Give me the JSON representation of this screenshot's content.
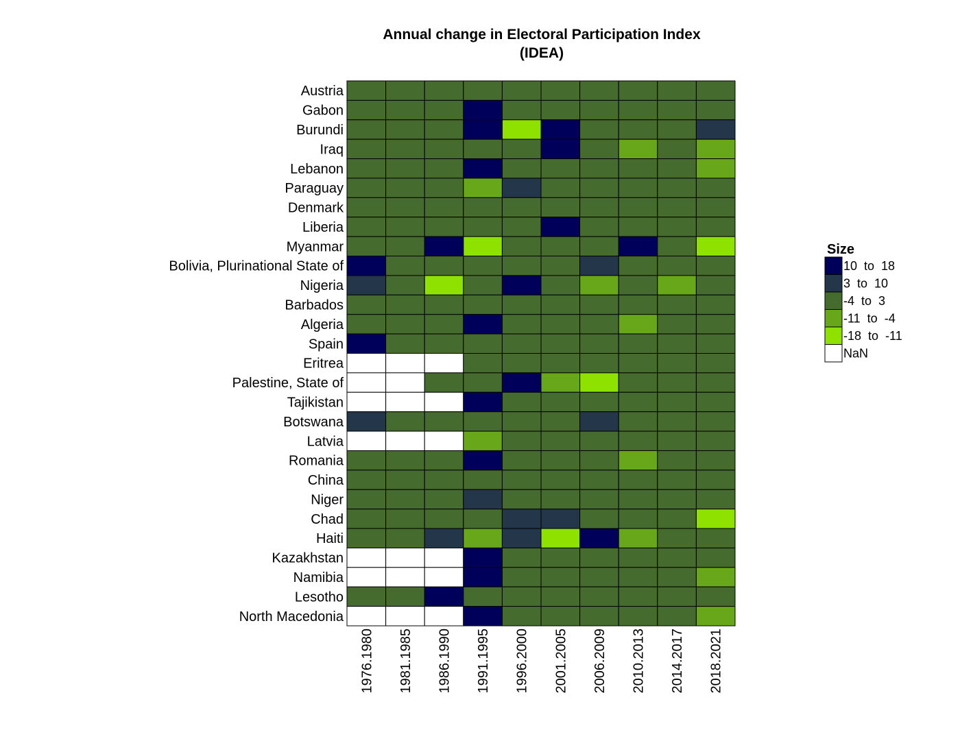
{
  "chart_data": {
    "type": "heatmap",
    "title_lines": [
      "Annual change in Electoral Participation Index",
      "(IDEA)"
    ],
    "columns": [
      "1976.1980",
      "1981.1985",
      "1986.1990",
      "1991.1995",
      "1996.2000",
      "2001.2005",
      "2006.2009",
      "2010.2013",
      "2014.2017",
      "2018.2021"
    ],
    "rows": [
      "Austria",
      "Gabon",
      "Burundi",
      "Iraq",
      "Lebanon",
      "Paraguay",
      "Denmark",
      "Liberia",
      "Myanmar",
      "Bolivia, Plurinational State of",
      "Nigeria",
      "Barbados",
      "Algeria",
      "Spain",
      "Eritrea",
      "Palestine, State of",
      "Tajikistan",
      "Botswana",
      "Latvia",
      "Romania",
      "China",
      "Niger",
      "Chad",
      "Haiti",
      "Kazakhstan",
      "Namibia",
      "Lesotho",
      "North Macedonia"
    ],
    "cells": [
      [
        2,
        2,
        2,
        2,
        2,
        2,
        2,
        2,
        2,
        2
      ],
      [
        2,
        2,
        2,
        0,
        2,
        2,
        2,
        2,
        2,
        2
      ],
      [
        2,
        2,
        2,
        0,
        4,
        0,
        2,
        2,
        2,
        1
      ],
      [
        2,
        2,
        2,
        2,
        2,
        0,
        2,
        3,
        2,
        3
      ],
      [
        2,
        2,
        2,
        0,
        2,
        2,
        2,
        2,
        2,
        3
      ],
      [
        2,
        2,
        2,
        3,
        1,
        2,
        2,
        2,
        2,
        2
      ],
      [
        2,
        2,
        2,
        2,
        2,
        2,
        2,
        2,
        2,
        2
      ],
      [
        2,
        2,
        2,
        2,
        2,
        0,
        2,
        2,
        2,
        2
      ],
      [
        2,
        2,
        0,
        4,
        2,
        2,
        2,
        0,
        2,
        4
      ],
      [
        0,
        2,
        2,
        2,
        2,
        2,
        1,
        2,
        2,
        2
      ],
      [
        1,
        2,
        4,
        2,
        0,
        2,
        3,
        2,
        3,
        2
      ],
      [
        2,
        2,
        2,
        2,
        2,
        2,
        2,
        2,
        2,
        2
      ],
      [
        2,
        2,
        2,
        0,
        2,
        2,
        2,
        3,
        2,
        2
      ],
      [
        0,
        2,
        2,
        2,
        2,
        2,
        2,
        2,
        2,
        2
      ],
      [
        5,
        5,
        5,
        2,
        2,
        2,
        2,
        2,
        2,
        2
      ],
      [
        5,
        5,
        2,
        2,
        0,
        3,
        4,
        2,
        2,
        2
      ],
      [
        5,
        5,
        5,
        0,
        2,
        2,
        2,
        2,
        2,
        2
      ],
      [
        1,
        2,
        2,
        2,
        2,
        2,
        1,
        2,
        2,
        2
      ],
      [
        5,
        5,
        5,
        3,
        2,
        2,
        2,
        2,
        2,
        2
      ],
      [
        2,
        2,
        2,
        0,
        2,
        2,
        2,
        3,
        2,
        2
      ],
      [
        2,
        2,
        2,
        2,
        2,
        2,
        2,
        2,
        2,
        2
      ],
      [
        2,
        2,
        2,
        1,
        2,
        2,
        2,
        2,
        2,
        2
      ],
      [
        2,
        2,
        2,
        2,
        1,
        1,
        2,
        2,
        2,
        4
      ],
      [
        2,
        2,
        1,
        3,
        1,
        4,
        0,
        3,
        2,
        2
      ],
      [
        5,
        5,
        5,
        0,
        2,
        2,
        2,
        2,
        2,
        2
      ],
      [
        5,
        5,
        5,
        0,
        2,
        2,
        2,
        2,
        2,
        3
      ],
      [
        2,
        2,
        0,
        2,
        2,
        2,
        2,
        2,
        2,
        2
      ],
      [
        5,
        5,
        5,
        0,
        2,
        2,
        2,
        2,
        2,
        3
      ]
    ],
    "legend": {
      "title": "Size",
      "placement": "right",
      "bins": [
        {
          "label": "10  to  18",
          "color": "#00005a"
        },
        {
          "label": "3  to  10",
          "color": "#24364a"
        },
        {
          "label": "-4  to  3",
          "color": "#456b2e"
        },
        {
          "label": "-11  to  -4",
          "color": "#68a61a"
        },
        {
          "label": "-18  to  -11",
          "color": "#8fe100"
        },
        {
          "label": "NaN",
          "color": "#ffffff"
        }
      ]
    },
    "cell_border_color": "#000000"
  }
}
